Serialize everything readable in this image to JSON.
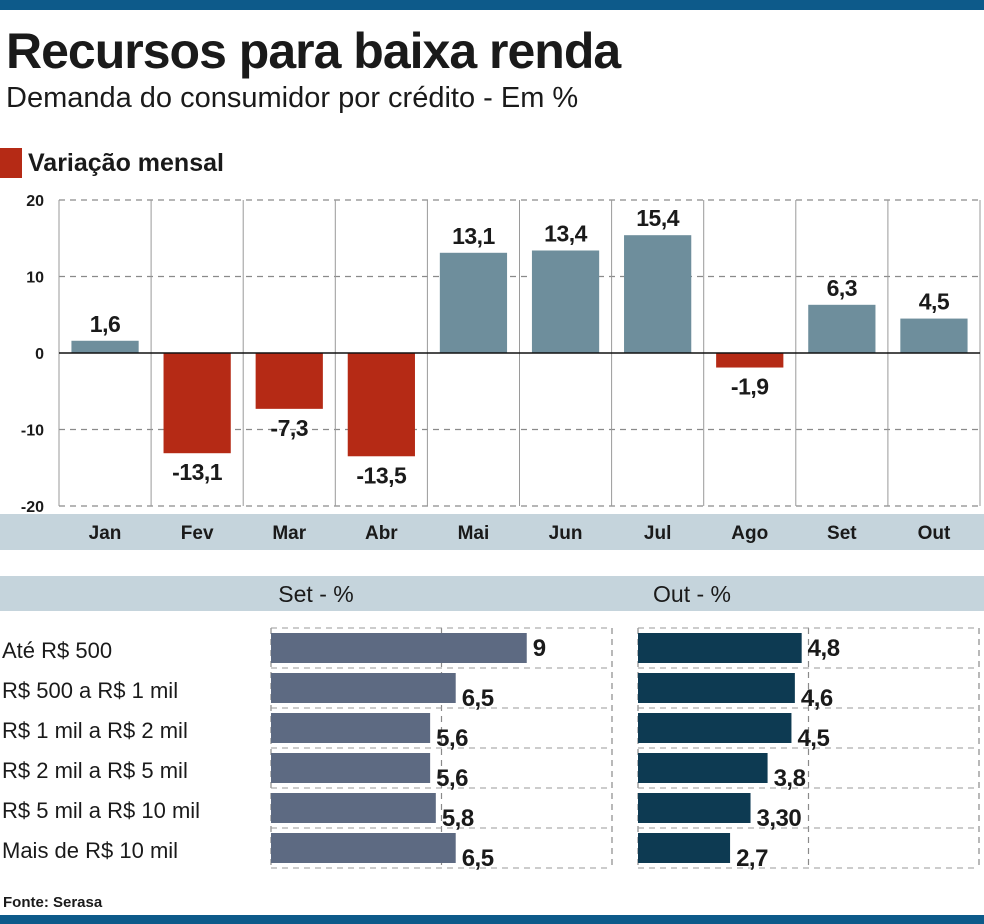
{
  "title": "Recursos para baixa renda",
  "subtitle": "Demanda do consumidor por crédito - Em %",
  "source": "Fonte: Serasa",
  "colors": {
    "accent_rule": "#0d5a8a",
    "positive_bar": "#6e8e9c",
    "negative_bar": "#b52a15",
    "band": "#c5d4dc",
    "set_bar": "#5d6a82",
    "out_bar": "#0d3a52"
  },
  "chart_data": [
    {
      "type": "bar",
      "legend": [
        {
          "label": "Variação mensal",
          "color": "#b52a15"
        }
      ],
      "categories": [
        "Jan",
        "Fev",
        "Mar",
        "Abr",
        "Mai",
        "Jun",
        "Jul",
        "Ago",
        "Set",
        "Out"
      ],
      "values": [
        1.6,
        -13.1,
        -7.3,
        -13.5,
        13.1,
        13.4,
        15.4,
        -1.9,
        6.3,
        4.5
      ],
      "value_labels": [
        "1,6",
        "-13,1",
        "-7,3",
        "-13,5",
        "13,1",
        "13,4",
        "15,4",
        "-1,9",
        "6,3",
        "4,5"
      ],
      "ylim": [
        -20,
        20
      ],
      "yticks": [
        20,
        10,
        0,
        -10,
        -20
      ],
      "ytick_labels": [
        "20",
        "10",
        "0",
        "-10",
        "-20"
      ],
      "grid": true
    },
    {
      "type": "bar",
      "orientation": "horizontal",
      "categories": [
        "Até R$ 500",
        "R$ 500 a R$ 1 mil",
        "R$ 1 mil a R$ 2 mil",
        "R$ 2 mil a R$ 5 mil",
        "R$ 5 mil a R$ 10 mil",
        "Mais de R$ 10 mil"
      ],
      "series": [
        {
          "name": "Set - %",
          "values": [
            9,
            6.5,
            5.6,
            5.6,
            5.8,
            6.5
          ],
          "value_labels": [
            "9",
            "6,5",
            "5,6",
            "5,6",
            "5,8",
            "6,5"
          ],
          "xlim": [
            0,
            12
          ]
        },
        {
          "name": "Out - %",
          "values": [
            4.8,
            4.6,
            4.5,
            3.8,
            3.3,
            2.7
          ],
          "value_labels": [
            "4,8",
            "4,6",
            "4,5",
            "3,8",
            "3,30",
            "2,7"
          ],
          "xlim": [
            0,
            10
          ]
        }
      ],
      "grid": true
    }
  ]
}
